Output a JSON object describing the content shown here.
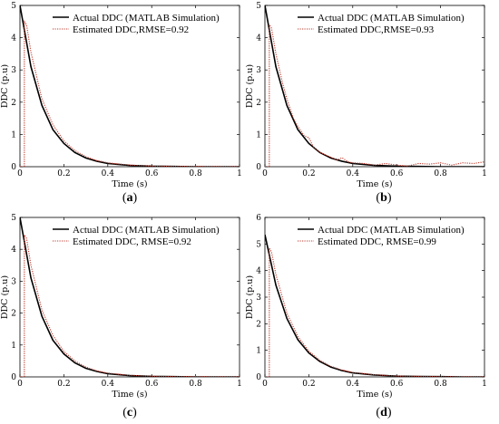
{
  "chart_data": [
    {
      "type": "line",
      "panel_label_parts": [
        "(",
        "a",
        ")"
      ],
      "xlabel": "Time (s)",
      "ylabel": "DDC (p.u)",
      "xlim": [
        0,
        1
      ],
      "ylim": [
        0,
        5
      ],
      "xticks": [
        "0",
        "0.2",
        "0.4",
        "0.6",
        "0.8",
        "1"
      ],
      "yticks": [
        "0",
        "1",
        "2",
        "3",
        "4",
        "5"
      ],
      "legend_position": "top-right",
      "series": [
        {
          "name": "Actual DDC (MATLAB Simulation)",
          "style": "solid",
          "x": [
            0,
            0.05,
            0.1,
            0.15,
            0.2,
            0.25,
            0.3,
            0.35,
            0.4,
            0.5,
            0.6,
            0.7,
            0.8,
            0.9,
            1.0
          ],
          "y": [
            5.0,
            3.1,
            1.9,
            1.15,
            0.72,
            0.44,
            0.27,
            0.17,
            0.1,
            0.04,
            0.015,
            0.01,
            0.0,
            0.0,
            0.0
          ]
        },
        {
          "name": "Estimated DDC,RMSE=0.92",
          "style": "dotted",
          "x": [
            0,
            0.02,
            0.02,
            0.03,
            0.05,
            0.1,
            0.15,
            0.2,
            0.25,
            0.3,
            0.35,
            0.4,
            0.5,
            0.6,
            0.7,
            0.8,
            0.9,
            1.0
          ],
          "y": [
            0,
            0,
            4.5,
            4.4,
            3.55,
            2.1,
            1.3,
            0.8,
            0.5,
            0.31,
            0.19,
            0.12,
            0.05,
            0.02,
            0.01,
            0.01,
            0.0,
            0.0
          ]
        }
      ]
    },
    {
      "type": "line",
      "panel_label_parts": [
        "(",
        "b",
        ")"
      ],
      "xlabel": "Time (s)",
      "ylabel": "DDC (p.u)",
      "xlim": [
        0,
        1
      ],
      "ylim": [
        0,
        5
      ],
      "xticks": [
        "0",
        "0.2",
        "0.4",
        "0.6",
        "0.8",
        "1"
      ],
      "yticks": [
        "0",
        "1",
        "2",
        "3",
        "4",
        "5"
      ],
      "legend_position": "top-right",
      "series": [
        {
          "name": "Actual DDC (MATLAB Simulation)",
          "style": "solid",
          "x": [
            0,
            0.05,
            0.1,
            0.15,
            0.2,
            0.25,
            0.3,
            0.35,
            0.4,
            0.5,
            0.6,
            0.7,
            0.8,
            0.9,
            1.0
          ],
          "y": [
            5.0,
            3.1,
            1.9,
            1.15,
            0.72,
            0.44,
            0.27,
            0.17,
            0.1,
            0.04,
            0.015,
            0.01,
            0.0,
            0.0,
            0.0
          ]
        },
        {
          "name": "Estimated DDC,RMSE=0.93",
          "style": "dotted",
          "x": [
            0,
            0.02,
            0.02,
            0.03,
            0.05,
            0.08,
            0.1,
            0.13,
            0.15,
            0.18,
            0.2,
            0.22,
            0.25,
            0.28,
            0.3,
            0.33,
            0.35,
            0.38,
            0.4,
            0.45,
            0.5,
            0.55,
            0.6,
            0.65,
            0.7,
            0.75,
            0.8,
            0.85,
            0.9,
            0.95,
            1.0
          ],
          "y": [
            0,
            0,
            4.4,
            4.3,
            3.5,
            2.6,
            2.1,
            1.5,
            1.25,
            0.95,
            0.9,
            0.62,
            0.45,
            0.35,
            0.3,
            0.2,
            0.28,
            0.15,
            0.12,
            0.1,
            0.05,
            0.1,
            0.05,
            0.02,
            0.1,
            0.08,
            0.12,
            0.05,
            0.12,
            0.1,
            0.15
          ]
        }
      ]
    },
    {
      "type": "line",
      "panel_label_parts": [
        "(",
        "c",
        ")"
      ],
      "xlabel": "Time (s)",
      "ylabel": "DDC (p.u)",
      "xlim": [
        0,
        1
      ],
      "ylim": [
        0,
        5
      ],
      "xticks": [
        "0",
        "0.2",
        "0.4",
        "0.6",
        "0.8",
        "1"
      ],
      "yticks": [
        "0",
        "1",
        "2",
        "3",
        "4",
        "5"
      ],
      "legend_position": "top-right",
      "series": [
        {
          "name": "Actual DDC (MATLAB Simulation)",
          "style": "solid",
          "x": [
            0,
            0.05,
            0.1,
            0.15,
            0.2,
            0.25,
            0.3,
            0.35,
            0.4,
            0.5,
            0.6,
            0.7,
            0.8,
            0.9,
            1.0
          ],
          "y": [
            5.0,
            3.1,
            1.9,
            1.15,
            0.72,
            0.44,
            0.27,
            0.17,
            0.1,
            0.04,
            0.015,
            0.01,
            0.0,
            0.0,
            0.0
          ]
        },
        {
          "name": "Estimated DDC, RMSE=0.92",
          "style": "dotted",
          "x": [
            0,
            0.02,
            0.02,
            0.03,
            0.05,
            0.1,
            0.15,
            0.2,
            0.25,
            0.3,
            0.35,
            0.4,
            0.5,
            0.6,
            0.7,
            0.8,
            0.9,
            1.0
          ],
          "y": [
            0,
            0,
            4.45,
            4.35,
            3.5,
            2.1,
            1.3,
            0.8,
            0.5,
            0.31,
            0.19,
            0.12,
            0.05,
            0.02,
            0.01,
            0.01,
            0.0,
            0.0
          ]
        }
      ]
    },
    {
      "type": "line",
      "panel_label_parts": [
        "(",
        "d",
        ")"
      ],
      "xlabel": "Time (s)",
      "ylabel": "DDC (p.u)",
      "xlim": [
        0,
        1
      ],
      "ylim": [
        0,
        6
      ],
      "xticks": [
        "0",
        "0.2",
        "0.4",
        "0.6",
        "0.8",
        "1"
      ],
      "yticks": [
        "0",
        "1",
        "2",
        "3",
        "4",
        "5",
        "6"
      ],
      "legend_position": "top-right",
      "series": [
        {
          "name": "Actual DDC (MATLAB Simulation)",
          "style": "solid",
          "x": [
            0,
            0.05,
            0.1,
            0.15,
            0.2,
            0.25,
            0.3,
            0.35,
            0.4,
            0.5,
            0.6,
            0.7,
            0.8,
            0.9,
            1.0
          ],
          "y": [
            5.35,
            3.45,
            2.2,
            1.4,
            0.9,
            0.58,
            0.37,
            0.24,
            0.15,
            0.07,
            0.03,
            0.015,
            0.01,
            0.0,
            0.0
          ]
        },
        {
          "name": "Estimated DDC, RMSE=0.99",
          "style": "dotted",
          "x": [
            0,
            0.02,
            0.02,
            0.03,
            0.05,
            0.1,
            0.15,
            0.2,
            0.25,
            0.3,
            0.35,
            0.4,
            0.5,
            0.6,
            0.7,
            0.8,
            0.9,
            1.0
          ],
          "y": [
            0,
            0,
            4.85,
            4.7,
            3.85,
            2.4,
            1.52,
            0.97,
            0.62,
            0.4,
            0.26,
            0.17,
            0.08,
            0.03,
            0.02,
            0.01,
            0.0,
            0.0
          ]
        }
      ]
    }
  ]
}
